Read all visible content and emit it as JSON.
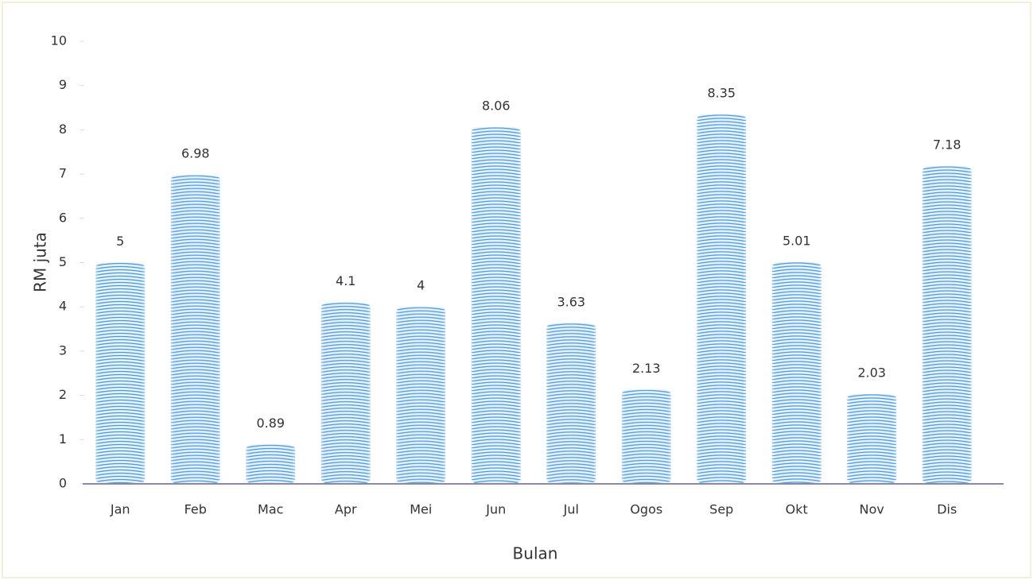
{
  "chart_data": {
    "type": "bar",
    "x_label": "Bulan",
    "y_label": "RM juta",
    "categories": [
      "Jan",
      "Feb",
      "Mac",
      "Apr",
      "Mei",
      "Jun",
      "Jul",
      "Ogos",
      "Sep",
      "Okt",
      "Nov",
      "Dis"
    ],
    "values": [
      5,
      6.98,
      0.89,
      4.1,
      4,
      8.06,
      3.63,
      2.13,
      8.35,
      5.01,
      2.03,
      7.18
    ],
    "color": "#4a9ad8",
    "ylim": [
      0,
      10
    ],
    "yticks": [
      0,
      1,
      2,
      3,
      4,
      5,
      6,
      7,
      8,
      9,
      10
    ],
    "grid": false
  }
}
